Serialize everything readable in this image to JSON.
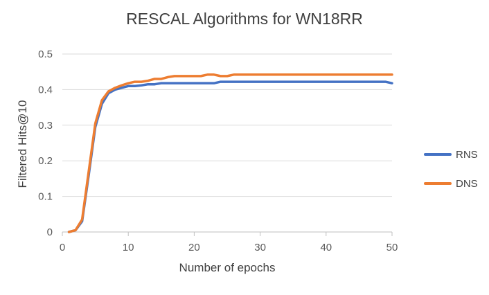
{
  "chart_data": {
    "type": "line",
    "title": "RESCAL Algorithms for WN18RR",
    "xlabel": "Number of epochs",
    "ylabel": "Filtered Hits@10",
    "xlim": [
      0,
      50
    ],
    "ylim": [
      0,
      0.5
    ],
    "xticks": [
      0,
      10,
      20,
      30,
      40,
      50
    ],
    "yticks": [
      0,
      0.1,
      0.2,
      0.3,
      0.4,
      0.5
    ],
    "xtick_labels": [
      "0",
      "10",
      "20",
      "30",
      "40",
      "50"
    ],
    "ytick_labels": [
      "0",
      "0.1",
      "0.2",
      "0.3",
      "0.4",
      "0.5"
    ],
    "grid": "horizontal",
    "legend_position": "right",
    "x": [
      1,
      2,
      3,
      4,
      5,
      6,
      7,
      8,
      9,
      10,
      11,
      12,
      13,
      14,
      15,
      16,
      17,
      18,
      19,
      20,
      21,
      22,
      23,
      24,
      25,
      26,
      27,
      28,
      29,
      30,
      31,
      32,
      33,
      34,
      35,
      36,
      37,
      38,
      39,
      40,
      41,
      42,
      43,
      44,
      45,
      46,
      47,
      48,
      49,
      50
    ],
    "series": [
      {
        "name": "RNS",
        "color": "#4472C4",
        "values": [
          0.0,
          0.005,
          0.03,
          0.16,
          0.295,
          0.36,
          0.39,
          0.4,
          0.405,
          0.41,
          0.41,
          0.412,
          0.415,
          0.415,
          0.418,
          0.418,
          0.418,
          0.418,
          0.418,
          0.418,
          0.418,
          0.418,
          0.418,
          0.422,
          0.422,
          0.422,
          0.422,
          0.422,
          0.422,
          0.422,
          0.422,
          0.422,
          0.422,
          0.422,
          0.422,
          0.422,
          0.422,
          0.422,
          0.422,
          0.422,
          0.422,
          0.422,
          0.422,
          0.422,
          0.422,
          0.422,
          0.422,
          0.422,
          0.422,
          0.418
        ]
      },
      {
        "name": "DNS",
        "color": "#ED7D31",
        "values": [
          0.0,
          0.005,
          0.035,
          0.17,
          0.305,
          0.37,
          0.395,
          0.405,
          0.412,
          0.418,
          0.422,
          0.422,
          0.425,
          0.43,
          0.43,
          0.435,
          0.438,
          0.438,
          0.438,
          0.438,
          0.438,
          0.442,
          0.442,
          0.438,
          0.438,
          0.442,
          0.442,
          0.442,
          0.442,
          0.442,
          0.442,
          0.442,
          0.442,
          0.442,
          0.442,
          0.442,
          0.442,
          0.442,
          0.442,
          0.442,
          0.442,
          0.442,
          0.442,
          0.442,
          0.442,
          0.442,
          0.442,
          0.442,
          0.442,
          0.442
        ]
      }
    ]
  }
}
